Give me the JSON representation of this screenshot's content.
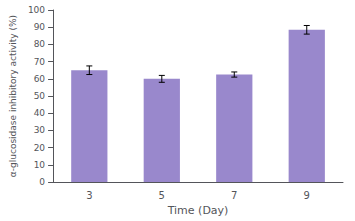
{
  "chart_data": {
    "type": "bar",
    "xlabel": "Time (Day)",
    "ylabel": "α-glucosidase inhibitory activity (%)",
    "categories": [
      "3",
      "5",
      "7",
      "9"
    ],
    "values": [
      65.0,
      60.0,
      62.5,
      88.5
    ],
    "errors": [
      2.5,
      2.0,
      1.5,
      2.5
    ],
    "color": "#9988cc",
    "ylim": [
      0,
      100
    ],
    "yticks": [
      0,
      10,
      20,
      30,
      40,
      50,
      60,
      70,
      80,
      90,
      100
    ],
    "grid": false
  }
}
